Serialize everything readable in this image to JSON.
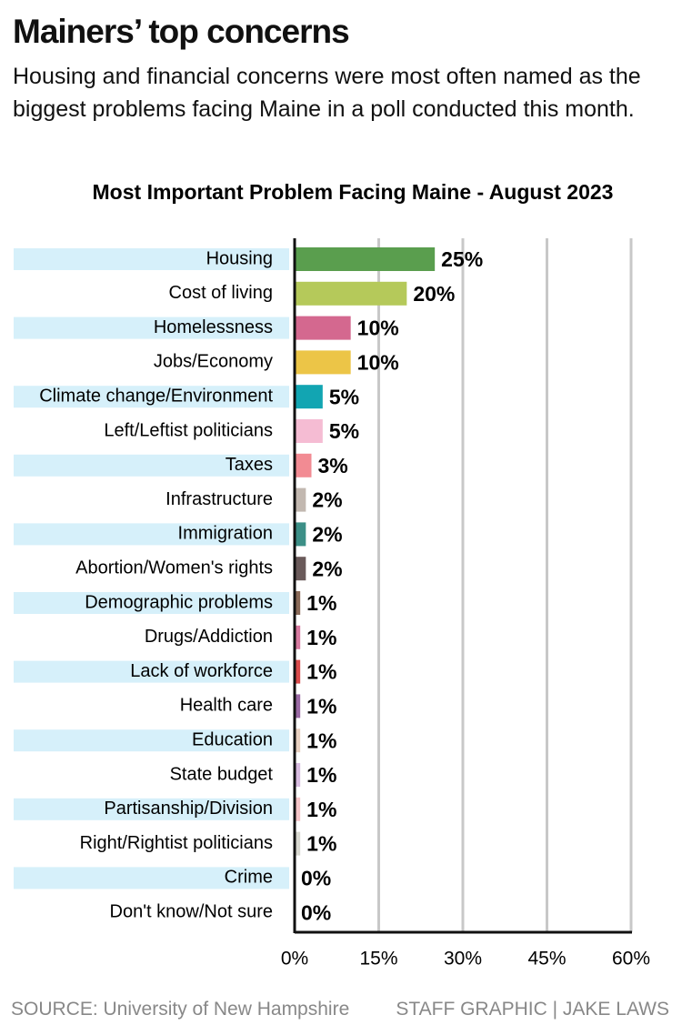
{
  "title": "Mainers’ top concerns",
  "subtitle": "Housing and financial concerns were most often named as the biggest problems facing Maine in a poll conducted this month.",
  "source": "SOURCE: University of New Hampshire",
  "credit": "STAFF GRAPHIC | JAKE LAWS",
  "chart_data": {
    "type": "hbar",
    "title": "Most Important Problem Facing Maine - August 2023",
    "categories": [
      "Housing",
      "Cost of living",
      "Homelessness",
      "Jobs/Economy",
      "Climate change/Environment",
      "Left/Leftist politicians",
      "Taxes",
      "Infrastructure",
      "Immigration",
      "Abortion/Women's rights",
      "Demographic problems",
      "Drugs/Addiction",
      "Lack of workforce",
      "Health care",
      "Education",
      "State budget",
      "Partisanship/Division",
      "Right/Rightist politicians",
      "Crime",
      "Don't know/Not sure"
    ],
    "values": [
      25,
      20,
      10,
      10,
      5,
      5,
      3,
      2,
      2,
      2,
      1,
      1,
      1,
      1,
      1,
      1,
      1,
      1,
      0,
      0
    ],
    "value_labels": [
      "25%",
      "20%",
      "10%",
      "10%",
      "5%",
      "5%",
      "3%",
      "2%",
      "2%",
      "2%",
      "1%",
      "1%",
      "1%",
      "1%",
      "1%",
      "1%",
      "1%",
      "1%",
      "0%",
      "0%"
    ],
    "colors": [
      "#5a9e4e",
      "#b5c95a",
      "#d4688f",
      "#ecc547",
      "#12a5b2",
      "#f5bcd3",
      "#f28b93",
      "#c2b8b0",
      "#3c8f87",
      "#6a5a5a",
      "#8a6a58",
      "#d77aa0",
      "#d94b4b",
      "#9a6aa4",
      "#e8d0c0",
      "#d8bce0",
      "#f6c5c8",
      "#d8d8d0",
      "#999999",
      "#999999"
    ],
    "xlim": [
      0,
      60
    ],
    "xticks": [
      {
        "value": 0,
        "label": "0%"
      },
      {
        "value": 15,
        "label": "15%"
      },
      {
        "value": 30,
        "label": "30%"
      },
      {
        "value": 45,
        "label": "45%"
      },
      {
        "value": 60,
        "label": "60%"
      }
    ],
    "grid": true
  }
}
